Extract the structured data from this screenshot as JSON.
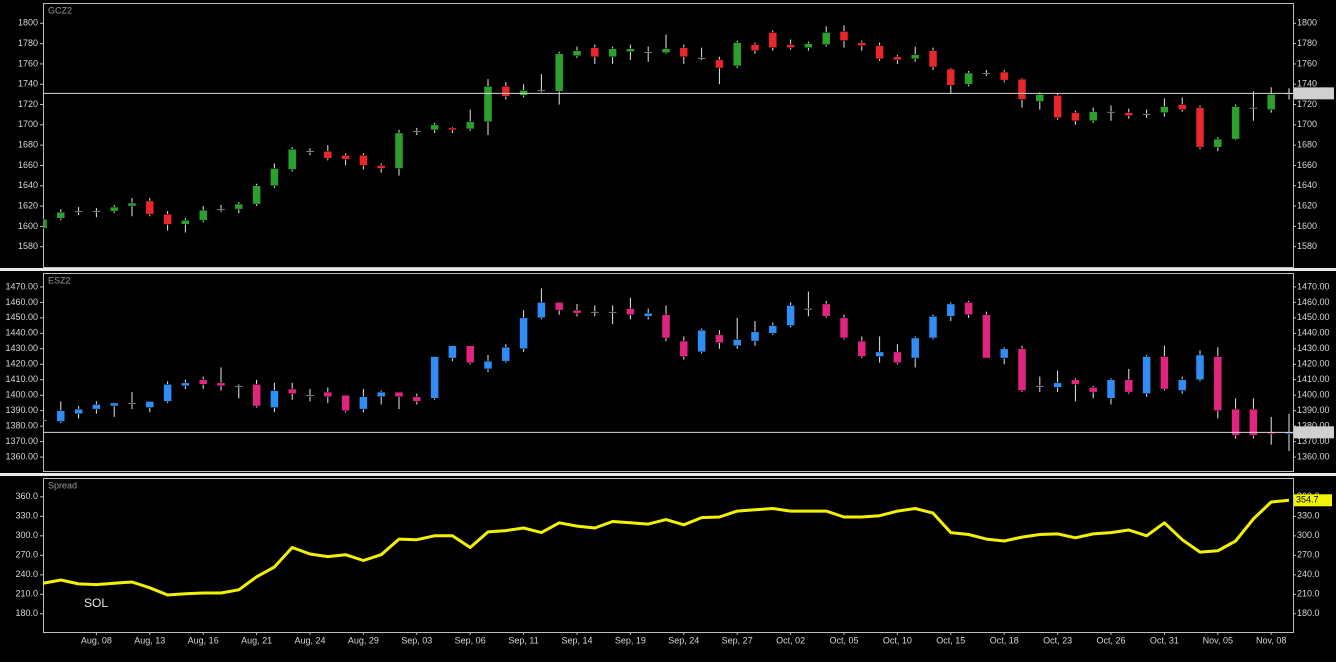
{
  "chart_data": [
    {
      "type": "candlestick",
      "title": "GCZ2",
      "ylim": [
        1560,
        1820
      ],
      "yticks": [
        1580,
        1600,
        1620,
        1640,
        1660,
        1680,
        1700,
        1720,
        1740,
        1760,
        1780,
        1800
      ],
      "up_color": "#2ca02c",
      "down_color": "#e8262b",
      "flat_color": "#ffffff",
      "open": [
        1598,
        1608,
        1615,
        1615,
        1615,
        1620,
        1625,
        1612,
        1602,
        1606,
        1617,
        1617,
        1622,
        1640,
        1656,
        1674,
        1674,
        1670,
        1670,
        1660,
        1657,
        1694,
        1695,
        1697,
        1696,
        1703,
        1738,
        1729,
        1734,
        1733,
        1768,
        1776,
        1767,
        1772,
        1772,
        1771,
        1776,
        1766,
        1764,
        1758,
        1779,
        1791,
        1779,
        1776,
        1779,
        1792,
        1781,
        1778,
        1767,
        1765,
        1773,
        1755,
        1740,
        1751,
        1752,
        1745,
        1723,
        1729,
        1712,
        1704,
        1713,
        1712,
        1711,
        1712,
        1720,
        1717,
        1678,
        1686,
        1717,
        1715,
        1731
      ],
      "high": [
        1608,
        1617,
        1619,
        1618,
        1621,
        1628,
        1628,
        1615,
        1608,
        1620,
        1621,
        1624,
        1642,
        1662,
        1678,
        1677,
        1680,
        1672,
        1672,
        1662,
        1695,
        1697,
        1702,
        1698,
        1715,
        1745,
        1742,
        1740,
        1750,
        1772,
        1777,
        1779,
        1777,
        1779,
        1777,
        1789,
        1779,
        1776,
        1767,
        1783,
        1781,
        1793,
        1784,
        1782,
        1797,
        1798,
        1783,
        1781,
        1769,
        1777,
        1776,
        1756,
        1753,
        1754,
        1754,
        1746,
        1732,
        1731,
        1714,
        1717,
        1719,
        1716,
        1715,
        1726,
        1727,
        1719,
        1688,
        1720,
        1733,
        1737,
        1736
      ],
      "low": [
        1597,
        1606,
        1611,
        1609,
        1613,
        1610,
        1610,
        1596,
        1594,
        1604,
        1614,
        1613,
        1620,
        1638,
        1654,
        1670,
        1665,
        1660,
        1656,
        1653,
        1650,
        1690,
        1692,
        1692,
        1694,
        1690,
        1725,
        1727,
        1732,
        1720,
        1766,
        1760,
        1760,
        1764,
        1762,
        1770,
        1760,
        1764,
        1740,
        1756,
        1770,
        1773,
        1774,
        1773,
        1777,
        1776,
        1773,
        1763,
        1760,
        1762,
        1754,
        1731,
        1738,
        1748,
        1742,
        1717,
        1715,
        1705,
        1700,
        1702,
        1704,
        1706,
        1707,
        1708,
        1713,
        1676,
        1674,
        1685,
        1704,
        1712,
        1725
      ],
      "close": [
        1607,
        1614,
        1615,
        1615,
        1619,
        1623,
        1612,
        1602,
        1606,
        1616,
        1617,
        1622,
        1640,
        1657,
        1676,
        1674,
        1667,
        1666,
        1660,
        1657,
        1692,
        1694,
        1700,
        1695,
        1703,
        1738,
        1728,
        1734,
        1734,
        1770,
        1773,
        1767,
        1775,
        1775,
        1772,
        1775,
        1767,
        1766,
        1756,
        1781,
        1773,
        1776,
        1776,
        1780,
        1791,
        1783,
        1778,
        1765,
        1764,
        1769,
        1757,
        1739,
        1751,
        1751,
        1744,
        1725,
        1730,
        1707,
        1704,
        1713,
        1713,
        1709,
        1711,
        1718,
        1715,
        1678,
        1686,
        1718,
        1717,
        1730,
        1731
      ]
    },
    {
      "type": "candlestick",
      "title": "ESZ2",
      "ylim": [
        1351,
        1479
      ],
      "yticks": [
        {
          "value": 1360,
          "label": "1360.00"
        },
        {
          "value": 1370,
          "label": "1370.00"
        },
        {
          "value": 1380,
          "label": "1380.00"
        },
        {
          "value": 1390,
          "label": "1390.00"
        },
        {
          "value": 1400,
          "label": "1400.00"
        },
        {
          "value": 1410,
          "label": "1410.00"
        },
        {
          "value": 1420,
          "label": "1420.00"
        },
        {
          "value": 1430,
          "label": "1430.00"
        },
        {
          "value": 1440,
          "label": "1440.00"
        },
        {
          "value": 1450,
          "label": "1450.00"
        },
        {
          "value": 1460,
          "label": "1460.00"
        },
        {
          "value": 1470,
          "label": "1470.00"
        }
      ],
      "up_color": "#2f8df5",
      "down_color": "#e0257f",
      "flat_color": "#ffffff",
      "open": [
        1384,
        1383,
        1388,
        1391,
        1393,
        1395,
        1392,
        1396,
        1406,
        1410,
        1408,
        1406,
        1407,
        1392,
        1404,
        1400,
        1402,
        1400,
        1391,
        1399,
        1402,
        1399,
        1398,
        1424,
        1432,
        1417,
        1422,
        1430,
        1450,
        1460,
        1455,
        1454,
        1454,
        1456,
        1451,
        1452,
        1435,
        1428,
        1439,
        1432,
        1435,
        1440,
        1445,
        1456,
        1459,
        1450,
        1435,
        1425,
        1428,
        1424,
        1437,
        1451,
        1460,
        1452,
        1424,
        1430,
        1406,
        1405,
        1410,
        1405,
        1398,
        1410,
        1401,
        1425,
        1403,
        1410,
        1425,
        1391,
        1391,
        1376,
        1375
      ],
      "high": [
        1388,
        1396,
        1393,
        1396,
        1395,
        1402,
        1396,
        1409,
        1410,
        1412,
        1418,
        1407,
        1410,
        1408,
        1408,
        1404,
        1405,
        1400,
        1404,
        1403,
        1402,
        1401,
        1425,
        1432,
        1432,
        1426,
        1433,
        1455,
        1469,
        1460,
        1459,
        1458,
        1458,
        1463,
        1456,
        1458,
        1438,
        1443,
        1442,
        1450,
        1448,
        1447,
        1460,
        1467,
        1461,
        1452,
        1438,
        1438,
        1433,
        1438,
        1452,
        1460,
        1461,
        1454,
        1431,
        1432,
        1412,
        1416,
        1411,
        1406,
        1411,
        1417,
        1426,
        1432,
        1412,
        1429,
        1431,
        1398,
        1398,
        1386,
        1388
      ],
      "low": [
        1381,
        1382,
        1385,
        1388,
        1386,
        1391,
        1389,
        1395,
        1404,
        1404,
        1403,
        1398,
        1392,
        1389,
        1397,
        1396,
        1395,
        1389,
        1389,
        1394,
        1391,
        1394,
        1397,
        1422,
        1420,
        1415,
        1421,
        1428,
        1449,
        1452,
        1451,
        1451,
        1446,
        1449,
        1449,
        1435,
        1423,
        1427,
        1430,
        1430,
        1432,
        1439,
        1444,
        1451,
        1450,
        1436,
        1424,
        1421,
        1420,
        1418,
        1436,
        1448,
        1450,
        1424,
        1420,
        1402,
        1402,
        1402,
        1396,
        1398,
        1394,
        1401,
        1399,
        1403,
        1401,
        1409,
        1385,
        1372,
        1372,
        1368,
        1364
      ],
      "close": [
        1384,
        1390,
        1391,
        1394,
        1395,
        1395,
        1396,
        1407,
        1408,
        1407,
        1406,
        1406,
        1393,
        1403,
        1401,
        1400,
        1399,
        1390,
        1399,
        1402,
        1399,
        1396,
        1425,
        1432,
        1421,
        1422,
        1431,
        1450,
        1460,
        1455,
        1453,
        1454,
        1454,
        1452,
        1453,
        1437,
        1425,
        1442,
        1434,
        1436,
        1441,
        1445,
        1458,
        1456,
        1451,
        1437,
        1425,
        1428,
        1421,
        1437,
        1451,
        1459,
        1452,
        1424,
        1430,
        1403,
        1406,
        1408,
        1407,
        1402,
        1410,
        1402,
        1425,
        1404,
        1410,
        1426,
        1390,
        1374,
        1374,
        1375,
        1376
      ]
    },
    {
      "type": "line",
      "title": "Spread",
      "annotation": "SOL",
      "ylim": [
        152,
        389
      ],
      "color": "#f2f200",
      "yticks": [
        {
          "value": 180,
          "label": "180.0"
        },
        {
          "value": 210,
          "label": "210.0"
        },
        {
          "value": 240,
          "label": "240.0"
        },
        {
          "value": 270,
          "label": "270.0"
        },
        {
          "value": 300,
          "label": "300.0"
        },
        {
          "value": 330,
          "label": "330.0"
        },
        {
          "value": 360,
          "label": "360.0"
        }
      ],
      "categories": [
        null,
        null,
        null,
        "Aug, 08",
        null,
        null,
        "Aug, 13",
        null,
        null,
        "Aug, 16",
        null,
        null,
        "Aug, 21",
        null,
        null,
        "Aug, 24",
        null,
        null,
        "Aug, 29",
        null,
        null,
        "Sep, 03",
        null,
        null,
        "Sep, 06",
        null,
        null,
        "Sep, 11",
        null,
        null,
        "Sep, 14",
        null,
        null,
        "Sep, 19",
        null,
        null,
        "Sep, 24",
        null,
        null,
        "Sep, 27",
        null,
        null,
        "Oct, 02",
        null,
        null,
        "Oct, 05",
        null,
        null,
        "Oct, 10",
        null,
        null,
        "Oct, 15",
        null,
        null,
        "Oct, 18",
        null,
        null,
        "Oct, 23",
        null,
        null,
        "Oct, 26",
        null,
        null,
        "Oct, 31",
        null,
        null,
        "Nov, 05",
        null,
        null,
        "Nov, 08",
        null
      ],
      "values": [
        227,
        232,
        226,
        225,
        227,
        229,
        220,
        209,
        211,
        212,
        212,
        217,
        237,
        252,
        282,
        272,
        268,
        271,
        262,
        271,
        295,
        294,
        300,
        300,
        282,
        306,
        308,
        312,
        305,
        320,
        315,
        312,
        322,
        320,
        318,
        325,
        317,
        328,
        329,
        338,
        340,
        342,
        338,
        338,
        338,
        329,
        329,
        331,
        338,
        342,
        335,
        305,
        302,
        295,
        292,
        298,
        302,
        303,
        297,
        303,
        305,
        309,
        300,
        320,
        294,
        275,
        277,
        292,
        326,
        352,
        354.7
      ]
    }
  ]
}
